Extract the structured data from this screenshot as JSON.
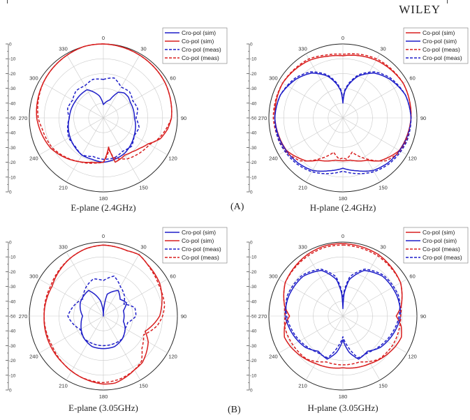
{
  "header": {
    "publisher": "WILEY"
  },
  "panel_labels": [
    "(A)",
    "(B)"
  ],
  "chart_data": [
    {
      "type": "polar",
      "caption": "E-plane (2.4GHz)",
      "angle_ticks": [
        "0",
        "30",
        "60",
        "90",
        "120",
        "150",
        "180",
        "210",
        "240",
        "270",
        "300",
        "330"
      ],
      "radial_ticks": [
        "0",
        "-10",
        "-20",
        "-30",
        "-40",
        "-50",
        "-40",
        "-30",
        "-20",
        "-10",
        "0"
      ],
      "rlim": [
        -50,
        0
      ],
      "legend_position": "top-right",
      "legend": [
        {
          "label": "Cro-pol (sim)",
          "color": "#1d1dc8",
          "dash": "solid"
        },
        {
          "label": "Co-pol (sim)",
          "color": "#d81e1e",
          "dash": "solid"
        },
        {
          "label": "Cro-pol (meas)",
          "color": "#1d1dc8",
          "dash": "dashed"
        },
        {
          "label": "Co-pol (meas)",
          "color": "#d81e1e",
          "dash": "dashed"
        }
      ],
      "series": [
        {
          "name": "Cro-pol (sim)",
          "theta": [
            0,
            20,
            30,
            40,
            50,
            60,
            90,
            120,
            150,
            165,
            180,
            195,
            210,
            240,
            270,
            300,
            330,
            350
          ],
          "r": [
            -41,
            -37,
            -30,
            -28,
            -28,
            -29,
            -29,
            -26,
            -22,
            -21,
            -20,
            -21,
            -21,
            -24,
            -27,
            -28,
            -28,
            -35
          ]
        },
        {
          "name": "Co-pol (sim)",
          "theta": [
            0,
            30,
            60,
            90,
            100,
            110,
            120,
            130,
            140,
            150,
            165,
            170,
            175,
            180,
            195,
            210,
            240,
            270,
            300,
            330,
            345
          ],
          "r": [
            0,
            -1,
            -2,
            -4,
            -6,
            -9,
            -15,
            -18,
            -20,
            -21,
            -19,
            -30,
            -25,
            -20,
            -19,
            -16,
            -9,
            -5,
            -3,
            -1,
            0
          ]
        },
        {
          "name": "Cro-pol (meas)",
          "theta": [
            0,
            15,
            30,
            45,
            60,
            75,
            90,
            105,
            120,
            135,
            150,
            165,
            180,
            195,
            210,
            225,
            240,
            255,
            270,
            285,
            300,
            315,
            330,
            345
          ],
          "r": [
            -24,
            -22,
            -26,
            -25,
            -27,
            -26,
            -28,
            -25,
            -26,
            -23,
            -24,
            -22,
            -22,
            -23,
            -21,
            -23,
            -23,
            -25,
            -27,
            -25,
            -26,
            -24,
            -25,
            -23
          ]
        },
        {
          "name": "Co-pol (meas)",
          "theta": [
            0,
            30,
            60,
            90,
            110,
            120,
            135,
            150,
            165,
            170,
            180,
            190,
            210,
            240,
            260,
            270,
            300,
            330,
            345
          ],
          "r": [
            0,
            -1,
            -2,
            -4,
            -10,
            -14,
            -16,
            -18,
            -22,
            -28,
            -20,
            -19,
            -16,
            -10,
            -8,
            -6,
            -3,
            -1,
            0
          ]
        }
      ]
    },
    {
      "type": "polar",
      "caption": "H-plane (2.4GHz)",
      "angle_ticks": [
        "0",
        "30",
        "60",
        "90",
        "120",
        "150",
        "180",
        "210",
        "240",
        "270",
        "300",
        "330"
      ],
      "radial_ticks": [
        "0",
        "-10",
        "-20",
        "-30",
        "-40",
        "-50",
        "-40",
        "-30",
        "-20",
        "-10",
        "0"
      ],
      "rlim": [
        -50,
        0
      ],
      "legend_position": "top-right",
      "legend": [
        {
          "label": "Co-pol (sim)",
          "color": "#d81e1e",
          "dash": "solid"
        },
        {
          "label": "Cro-pol (sim)",
          "color": "#1d1dc8",
          "dash": "solid"
        },
        {
          "label": "Co-pol (meas)",
          "color": "#d81e1e",
          "dash": "dashed"
        },
        {
          "label": "Cro-pol (meas)",
          "color": "#1d1dc8",
          "dash": "dashed"
        }
      ],
      "series": [
        {
          "name": "Co-pol (sim)",
          "theta": [
            0,
            30,
            60,
            90,
            120,
            140,
            150,
            160,
            170,
            180,
            190,
            200,
            210,
            220,
            240,
            270,
            300,
            330,
            345
          ],
          "r": [
            -8,
            -5,
            -3,
            -4,
            -6,
            -12,
            -17,
            -19,
            -21,
            -21,
            -21,
            -19,
            -17,
            -12,
            -6,
            -4,
            -3,
            -5,
            -7
          ]
        },
        {
          "name": "Cro-pol (sim)",
          "theta": [
            0,
            4,
            10,
            20,
            35,
            50,
            70,
            90,
            110,
            135,
            150,
            165,
            180,
            195,
            210,
            225,
            250,
            270,
            290,
            310,
            325,
            340,
            350,
            356
          ],
          "r": [
            -40,
            -32,
            -27,
            -20,
            -13,
            -9,
            -5,
            -4,
            -5,
            -7,
            -9,
            -13,
            -16,
            -13,
            -9,
            -7,
            -5,
            -4,
            -5,
            -9,
            -13,
            -20,
            -27,
            -32
          ]
        },
        {
          "name": "Co-pol (meas)",
          "theta": [
            0,
            30,
            60,
            90,
            120,
            135,
            150,
            165,
            175,
            180,
            185,
            195,
            210,
            225,
            240,
            270,
            300,
            330,
            345
          ],
          "r": [
            -7,
            -4,
            -3,
            -4,
            -5,
            -9,
            -18,
            -26,
            -22,
            -23,
            -22,
            -26,
            -18,
            -9,
            -5,
            -3,
            -3,
            -4,
            -6
          ]
        },
        {
          "name": "Cro-pol (meas)",
          "theta": [
            0,
            4,
            10,
            20,
            35,
            50,
            70,
            90,
            110,
            135,
            150,
            165,
            180,
            195,
            210,
            225,
            250,
            270,
            290,
            310,
            325,
            340,
            350,
            356
          ],
          "r": [
            -38,
            -31,
            -26,
            -19,
            -12,
            -8,
            -5,
            -4,
            -4,
            -6,
            -8,
            -11,
            -14,
            -11,
            -8,
            -6,
            -4,
            -4,
            -5,
            -8,
            -12,
            -19,
            -26,
            -31
          ]
        }
      ]
    },
    {
      "type": "polar",
      "caption": "E-plane (3.05GHz)",
      "angle_ticks": [
        "0",
        "30",
        "60",
        "90",
        "120",
        "150",
        "180",
        "210",
        "240",
        "270",
        "300",
        "330"
      ],
      "radial_ticks": [
        "0",
        "-10",
        "-20",
        "-30",
        "-40",
        "-50",
        "-40",
        "-30",
        "-20",
        "-10",
        "0"
      ],
      "rlim": [
        -50,
        0
      ],
      "legend_position": "top-right",
      "legend": [
        {
          "label": "Cro-pol (sim)",
          "color": "#1d1dc8",
          "dash": "solid"
        },
        {
          "label": "Co-pol (sim)",
          "color": "#d81e1e",
          "dash": "solid"
        },
        {
          "label": "Cro-pol (meas)",
          "color": "#1d1dc8",
          "dash": "dashed"
        },
        {
          "label": "Co-pol (meas)",
          "color": "#d81e1e",
          "dash": "dashed"
        }
      ],
      "series": [
        {
          "name": "Cro-pol (sim)",
          "theta": [
            0,
            10,
            30,
            45,
            60,
            75,
            90,
            105,
            120,
            140,
            160,
            180,
            200,
            220,
            250,
            270,
            300,
            330,
            350
          ],
          "r": [
            -50,
            -35,
            -30,
            -34,
            -32,
            -36,
            -36,
            -36,
            -33,
            -30,
            -28,
            -28,
            -28,
            -30,
            -34,
            -36,
            -32,
            -30,
            -40
          ]
        },
        {
          "name": "Co-pol (sim)",
          "theta": [
            0,
            20,
            30,
            40,
            60,
            80,
            90,
            100,
            110,
            120,
            130,
            140,
            150,
            160,
            170,
            180,
            200,
            220,
            240,
            270,
            300,
            330,
            345
          ],
          "r": [
            -2,
            -3,
            -2,
            -4,
            -6,
            -10,
            -12,
            -16,
            -20,
            -15,
            -12,
            -9,
            -8,
            -6,
            -4,
            -4,
            -6,
            -8,
            -9,
            -10,
            -10,
            -5,
            -3
          ]
        },
        {
          "name": "Cro-pol (meas)",
          "theta": [
            0,
            15,
            30,
            45,
            60,
            75,
            90,
            105,
            120,
            140,
            160,
            180,
            200,
            220,
            240,
            260,
            270,
            290,
            310,
            330,
            345
          ],
          "r": [
            -26,
            -22,
            -27,
            -30,
            -34,
            -28,
            -28,
            -33,
            -33,
            -30,
            -30,
            -30,
            -30,
            -30,
            -32,
            -28,
            -26,
            -29,
            -32,
            -27,
            -24
          ]
        },
        {
          "name": "Co-pol (meas)",
          "theta": [
            0,
            20,
            30,
            45,
            60,
            80,
            90,
            100,
            115,
            130,
            140,
            150,
            165,
            180,
            200,
            220,
            240,
            270,
            300,
            330,
            345
          ],
          "r": [
            -2,
            -3,
            -2,
            -5,
            -7,
            -8,
            -10,
            -13,
            -20,
            -16,
            -10,
            -8,
            -6,
            -5,
            -6,
            -8,
            -10,
            -10,
            -9,
            -5,
            -3
          ]
        }
      ]
    },
    {
      "type": "polar",
      "caption": "H-plane (3.05GHz)",
      "angle_ticks": [
        "0",
        "30",
        "60",
        "90",
        "120",
        "150",
        "180",
        "210",
        "240",
        "270",
        "300",
        "330"
      ],
      "radial_ticks": [
        "0",
        "-10",
        "-20",
        "-30",
        "-40",
        "-50",
        "-40",
        "-30",
        "-20",
        "-10",
        "0"
      ],
      "rlim": [
        -50,
        0
      ],
      "legend_position": "top-right",
      "legend": [
        {
          "label": "Co-pol (sim)",
          "color": "#d81e1e",
          "dash": "solid"
        },
        {
          "label": "Cro-pol (sim)",
          "color": "#1d1dc8",
          "dash": "solid"
        },
        {
          "label": "Co-pol (meas)",
          "color": "#d81e1e",
          "dash": "dashed"
        },
        {
          "label": "Cro-pol (meas)",
          "color": "#1d1dc8",
          "dash": "dashed"
        }
      ],
      "series": [
        {
          "name": "Co-pol (sim)",
          "theta": [
            0,
            30,
            60,
            80,
            90,
            100,
            110,
            120,
            135,
            150,
            165,
            180,
            195,
            210,
            225,
            240,
            250,
            260,
            270,
            280,
            300,
            330,
            345
          ],
          "r": [
            -1,
            -2,
            -5,
            -10,
            -14,
            -10,
            -8,
            -9,
            -11,
            -13,
            -14,
            -15,
            -14,
            -13,
            -11,
            -9,
            -8,
            -10,
            -14,
            -10,
            -5,
            -2,
            -1
          ]
        },
        {
          "name": "Cro-pol (sim)",
          "theta": [
            0,
            3,
            10,
            25,
            45,
            70,
            90,
            110,
            130,
            145,
            160,
            170,
            180,
            190,
            200,
            215,
            230,
            250,
            270,
            290,
            315,
            335,
            350,
            357
          ],
          "r": [
            -45,
            -35,
            -25,
            -16,
            -12,
            -11,
            -11,
            -14,
            -17,
            -21,
            -19,
            -25,
            -34,
            -25,
            -19,
            -21,
            -17,
            -14,
            -11,
            -11,
            -12,
            -16,
            -25,
            -35
          ]
        },
        {
          "name": "Co-pol (meas)",
          "theta": [
            0,
            30,
            60,
            80,
            90,
            100,
            120,
            140,
            160,
            175,
            180,
            185,
            200,
            220,
            240,
            260,
            270,
            280,
            300,
            330,
            345
          ],
          "r": [
            -2,
            -3,
            -5,
            -10,
            -11,
            -11,
            -11,
            -12,
            -17,
            -17,
            -17,
            -17,
            -17,
            -12,
            -11,
            -10,
            -11,
            -10,
            -5,
            -3,
            -2
          ]
        },
        {
          "name": "Cro-pol (meas)",
          "theta": [
            0,
            3,
            10,
            25,
            45,
            70,
            90,
            110,
            130,
            145,
            160,
            172,
            180,
            188,
            200,
            215,
            230,
            250,
            270,
            290,
            315,
            335,
            350,
            357
          ],
          "r": [
            -40,
            -33,
            -23,
            -15,
            -11,
            -10,
            -12,
            -15,
            -18,
            -20,
            -20,
            -30,
            -36,
            -30,
            -20,
            -20,
            -18,
            -15,
            -12,
            -10,
            -11,
            -15,
            -23,
            -33
          ]
        }
      ]
    }
  ]
}
